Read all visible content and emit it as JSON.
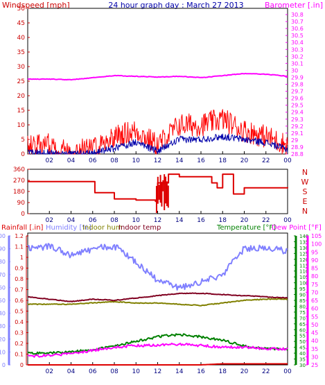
{
  "header": {
    "title": "24 hour graph day : March 27 2013",
    "title_color": "#0000aa"
  },
  "colors": {
    "gust": "#ff0000",
    "wind": "#0000aa",
    "baro": "#ff00ff",
    "dir": "#dd0000",
    "rain": "#dd0000",
    "humidity": "#8080ff",
    "indoor_hum": "#808000",
    "indoor_temp": "#800020",
    "temperature": "#008000",
    "dewpoint": "#ff00ff",
    "tick_time": "#000080",
    "axis_time": "#000000"
  },
  "time_ticks": [
    "02",
    "04",
    "06",
    "08",
    "10",
    "12",
    "14",
    "16",
    "18",
    "20",
    "22",
    "00"
  ],
  "chart_data": [
    {
      "type": "line",
      "panel": "wind_baro",
      "ylabel_left": "Windspeed [mph]",
      "ylabel_right": "Barometer [.in]",
      "ylim_left": [
        0,
        50
      ],
      "ylim_right": [
        28.8,
        30.9
      ],
      "yticks_left": [
        "0",
        "5",
        "10",
        "15",
        "20",
        "25",
        "30",
        "35",
        "40",
        "45",
        "50"
      ],
      "yticks_right": [
        "28.8",
        "28.9",
        "29",
        "29.1",
        "29.2",
        "29.3",
        "29.4",
        "29.5",
        "29.6",
        "29.7",
        "29.8",
        "29.9",
        "30",
        "30.1",
        "30.2",
        "30.3",
        "30.4",
        "30.5",
        "30.6",
        "30.7",
        "30.8"
      ],
      "x_hours": [
        0,
        2,
        4,
        6,
        8,
        10,
        12,
        14,
        16,
        18,
        20,
        22,
        24
      ],
      "series": [
        {
          "name": "Windspeed",
          "axis": "left",
          "values": [
            0.5,
            0.5,
            0.2,
            0.3,
            2,
            4,
            1,
            5,
            5,
            6,
            5,
            4,
            1.5
          ]
        },
        {
          "name": "Gust",
          "axis": "left",
          "values": [
            3,
            3,
            1,
            2,
            6,
            8,
            3,
            10,
            10,
            12,
            8,
            6,
            3
          ]
        },
        {
          "name": "Barometer",
          "axis": "right",
          "values": [
            29.88,
            29.88,
            29.87,
            29.9,
            29.93,
            29.92,
            29.91,
            29.92,
            29.9,
            29.93,
            29.96,
            29.95,
            29.92
          ]
        }
      ]
    },
    {
      "type": "line",
      "panel": "wind_direction",
      "ylim_left": [
        0,
        360
      ],
      "yticks_left": [
        "0",
        "90",
        "180",
        "270",
        "360"
      ],
      "labels_right": [
        "N",
        "W",
        "S",
        "E",
        "N"
      ],
      "x_hours": [
        0,
        2,
        4,
        5.8,
        6.2,
        8,
        10,
        11.8,
        12,
        13,
        14,
        16,
        17,
        17.5,
        18,
        19,
        20,
        22,
        24
      ],
      "series": [
        {
          "name": "Wind direction",
          "values": [
            260,
            260,
            260,
            260,
            170,
            120,
            110,
            100,
            250,
            320,
            300,
            300,
            250,
            210,
            320,
            160,
            210,
            210,
            215
          ]
        }
      ]
    },
    {
      "type": "line",
      "panel": "climate",
      "legend": [
        "Rainfall [.in]",
        "Humidity [%]",
        "Indoor hum",
        "Indoor temp",
        "Temperature [°F]",
        "Dew Point [°F]"
      ],
      "ylim_rain": [
        0,
        1.2
      ],
      "ylim_humidity": [
        0,
        100
      ],
      "ylim_temp": [
        30,
        140
      ],
      "ylim_dew": [
        25,
        105
      ],
      "yticks_rain": [
        "0",
        "0.1",
        "0.2",
        "0.3",
        "0.4",
        "0.5",
        "0.6",
        "0.7",
        "0.8",
        "0.9",
        "1",
        "1.1",
        "1.2"
      ],
      "yticks_humidity": [
        "0",
        "10",
        "20",
        "30",
        "40",
        "50",
        "60",
        "70",
        "80",
        "90",
        "100"
      ],
      "yticks_temp": [
        "30",
        "35",
        "40",
        "45",
        "50",
        "55",
        "60",
        "65",
        "70",
        "75",
        "80",
        "85",
        "90",
        "95",
        "100",
        "105",
        "110",
        "115",
        "120",
        "125",
        "130",
        "135",
        "140"
      ],
      "yticks_dew": [
        "25",
        "30",
        "35",
        "40",
        "45",
        "50",
        "55",
        "60",
        "65",
        "70",
        "75",
        "80",
        "85",
        "90",
        "95",
        "100",
        "105"
      ],
      "x_hours": [
        0,
        2,
        4,
        6,
        8,
        10,
        12,
        14,
        16,
        18,
        20,
        22,
        24
      ],
      "series": [
        {
          "name": "Humidity [%]",
          "axis": "humidity",
          "values": [
            90,
            92,
            85,
            90,
            92,
            80,
            65,
            60,
            64,
            70,
            90,
            91,
            88
          ]
        },
        {
          "name": "Indoor hum",
          "axis": "humidity",
          "values": [
            47,
            47,
            47,
            48,
            49,
            48,
            48,
            47,
            46,
            48,
            50,
            51,
            51
          ]
        },
        {
          "name": "Indoor temp",
          "axis": "temp",
          "values": [
            88,
            86,
            84,
            86,
            85,
            87,
            89,
            91,
            91,
            90,
            89,
            88,
            87
          ]
        },
        {
          "name": "Temperature [°F]",
          "axis": "temp",
          "values": [
            40,
            40,
            41,
            43,
            46,
            50,
            54,
            56,
            54,
            51,
            46,
            44,
            43
          ]
        },
        {
          "name": "Dew Point [°F]",
          "axis": "dew",
          "values": [
            30,
            31,
            32,
            34,
            36,
            37,
            37,
            38,
            37,
            36,
            36,
            35,
            35
          ]
        },
        {
          "name": "Rainfall [.in]",
          "axis": "rain",
          "values": [
            0,
            0,
            0,
            0,
            0,
            0,
            0,
            0,
            0,
            0.01,
            0.01,
            0.01,
            0.01
          ]
        }
      ]
    }
  ]
}
